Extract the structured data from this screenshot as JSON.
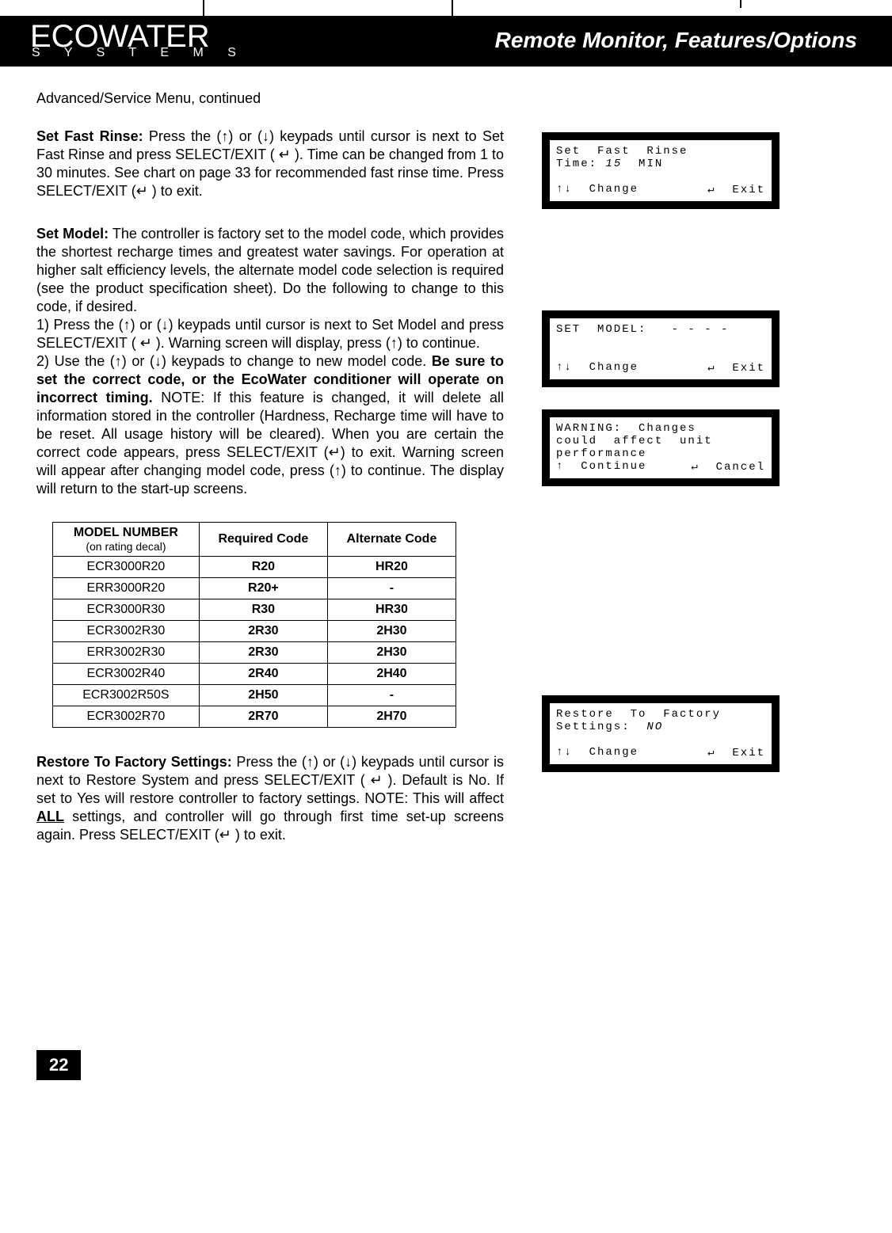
{
  "brand": {
    "main": "ECOWATER",
    "sub": "S Y S T E M S"
  },
  "header_title": "Remote Monitor, Features/Options",
  "continued": "Advanced/Service Menu, continued",
  "setFastRinse": {
    "lead": "Set Fast Rinse:",
    "body": " Press the (↑) or (↓) keypads until cursor is next to Set Fast Rinse and press SELECT/EXIT ( ↵ ).  Time can be changed from 1 to 30 minutes.  See chart on page 33 for recommended fast rinse time.  Press SELECT/EXIT (↵ ) to exit."
  },
  "setModel": {
    "lead": "Set Model:",
    "intro": "  The controller is factory set to the model code, which provides the shortest recharge times and greatest water savings. For operation at higher salt efficiency levels, the alternate model code selection is required (see the product specification sheet). Do the following to change to this code, if desired.",
    "step1": "1) Press the (↑) or (↓) keypads until cursor is next to Set Model and press SELECT/EXIT ( ↵  ).  Warning screen will display, press (↑) to continue.",
    "step2a": "2) Use the (↑) or (↓) keypads to change to new model code.  ",
    "step2bold": "Be sure to set the correct code, or the EcoWater conditioner will operate on incorrect timing.",
    "step2b": " NOTE: If this feature is changed, it will delete all information stored in the controller (Hardness, Recharge time will have to be reset.  All usage history will be cleared).  When you are certain the correct code appears, press SELECT/EXIT (↵) to exit.  Warning screen will appear after changing model code, press (↑) to continue.  The display will return to the start-up screens."
  },
  "restore": {
    "lead": "Restore To Factory Settings:",
    "body_a": " Press the (↑) or (↓) keypads until cursor is next to Restore System and press SELECT/EXIT ( ↵  ).  Default is No.  If set to Yes will restore controller to factory settings.  NOTE: This will affect ",
    "all": "ALL",
    "body_b": " settings, and controller will go through first time set-up screens again.  Press SELECT/EXIT (↵ ) to exit."
  },
  "codes_table": {
    "col1_head": "MODEL NUMBER",
    "col1_sub": "(on rating decal)",
    "col2_head": "Required Code",
    "col3_head": "Alternate Code",
    "rows": [
      {
        "model": "ECR3000R20",
        "req": "R20",
        "alt": "HR20"
      },
      {
        "model": "ERR3000R20",
        "req": "R20+",
        "alt": "-"
      },
      {
        "model": "ECR3000R30",
        "req": "R30",
        "alt": "HR30"
      },
      {
        "model": "ECR3002R30",
        "req": "2R30",
        "alt": "2H30"
      },
      {
        "model": "ERR3002R30",
        "req": "2R30",
        "alt": "2H30"
      },
      {
        "model": "ECR3002R40",
        "req": "2R40",
        "alt": "2H40"
      },
      {
        "model": "ECR3002R50S",
        "req": "2H50",
        "alt": "-"
      },
      {
        "model": "ECR3002R70",
        "req": "2R70",
        "alt": "2H70"
      }
    ]
  },
  "lcd_fastrinse": {
    "l1": "Set  Fast  Rinse",
    "l2a": "Time: ",
    "l2b": "15",
    "l2c": "  MIN",
    "fl": "↑↓  Change",
    "fr": "↵  Exit"
  },
  "lcd_setmodel": {
    "l1": "SET  MODEL:   - - - -",
    "fl": "↑↓  Change",
    "fr": "↵  Exit"
  },
  "lcd_warning": {
    "l1": "WARNING:  Changes",
    "l2": "could  affect  unit",
    "l3": "performance",
    "fl": "↑  Continue",
    "fr": "↵  Cancel"
  },
  "lcd_restore": {
    "l1": "Restore  To  Factory",
    "l2a": "Settings:  ",
    "l2b": "NO",
    "fl": "↑↓  Change",
    "fr": "↵  Exit"
  },
  "page_number": "22"
}
